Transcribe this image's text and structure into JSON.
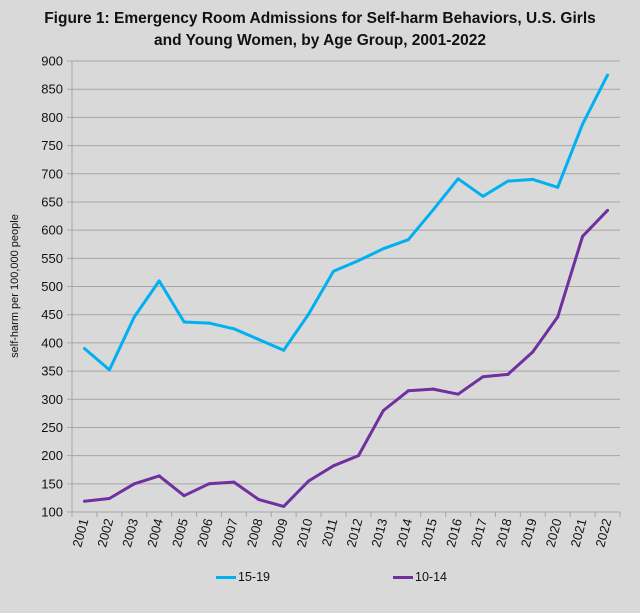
{
  "chart_data": {
    "type": "line",
    "title": "Figure 1: Emergency Room Admissions for Self-harm Behaviors, U.S. Girls and Young Women, by Age Group, 2001-2022",
    "title_lines": [
      "Figure 1: Emergency Room Admissions for Self-harm Behaviors, U.S. Girls",
      "and Young Women, by Age Group, 2001-2022"
    ],
    "xlabel": "",
    "ylabel": "self-harm per 100,000 people",
    "ylim": [
      100,
      900
    ],
    "yticks": [
      "100",
      "150",
      "200",
      "250",
      "300",
      "350",
      "400",
      "450",
      "500",
      "550",
      "600",
      "650",
      "700",
      "750",
      "800",
      "850",
      "900"
    ],
    "grid": true,
    "legend_position": "bottom",
    "categories": [
      "2001",
      "2002",
      "2003",
      "2004",
      "2005",
      "2006",
      "2007",
      "2008",
      "2009",
      "2010",
      "2011",
      "2012",
      "2013",
      "2014",
      "2015",
      "2016",
      "2017",
      "2018",
      "2019",
      "2020",
      "2021",
      "2022"
    ],
    "series": [
      {
        "name": "15-19",
        "color": "#00b0f0",
        "values": [
          390,
          352,
          446,
          510,
          437,
          435,
          425,
          406,
          387,
          451,
          527,
          546,
          567,
          583,
          636,
          691,
          660,
          687,
          690,
          676,
          788,
          875
        ]
      },
      {
        "name": "10-14",
        "color": "#7030a0",
        "values": [
          119,
          124,
          150,
          164,
          129,
          150,
          153,
          122,
          110,
          155,
          182,
          200,
          280,
          315,
          318,
          309,
          340,
          344,
          384,
          446,
          589,
          635
        ]
      }
    ]
  }
}
